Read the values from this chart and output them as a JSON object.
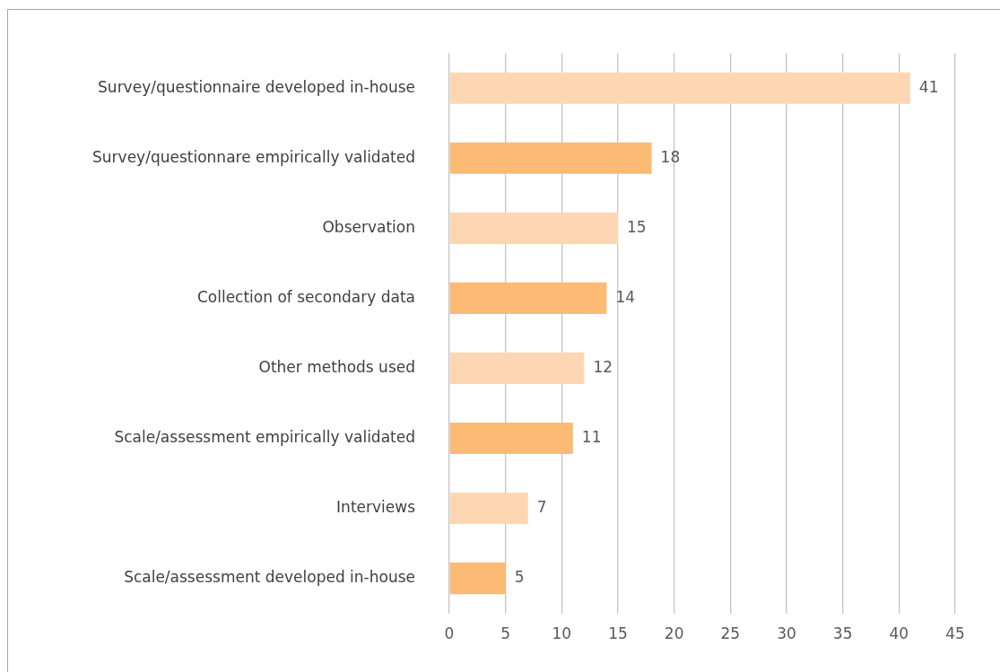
{
  "chart_data": {
    "type": "bar",
    "orientation": "horizontal",
    "categories": [
      "Survey/questionnaire developed in-house",
      "Survey/questionnare empirically validated",
      "Observation",
      "Collection of secondary data",
      "Other methods used",
      "Scale/assessment empirically validated",
      "Interviews",
      "Scale/assessment developed in-house"
    ],
    "values": [
      41,
      18,
      15,
      14,
      12,
      11,
      7,
      5
    ],
    "colors": [
      "#fdd7b4",
      "#fbbb74",
      "#fdd7b4",
      "#fbbb74",
      "#fdd7b4",
      "#fbbb74",
      "#fdd7b4",
      "#fbbb74"
    ],
    "xlim": [
      0,
      45
    ],
    "xticks": [
      0,
      5,
      10,
      15,
      20,
      25,
      30,
      35,
      40,
      45
    ],
    "grid": "x",
    "data_labels": true
  }
}
